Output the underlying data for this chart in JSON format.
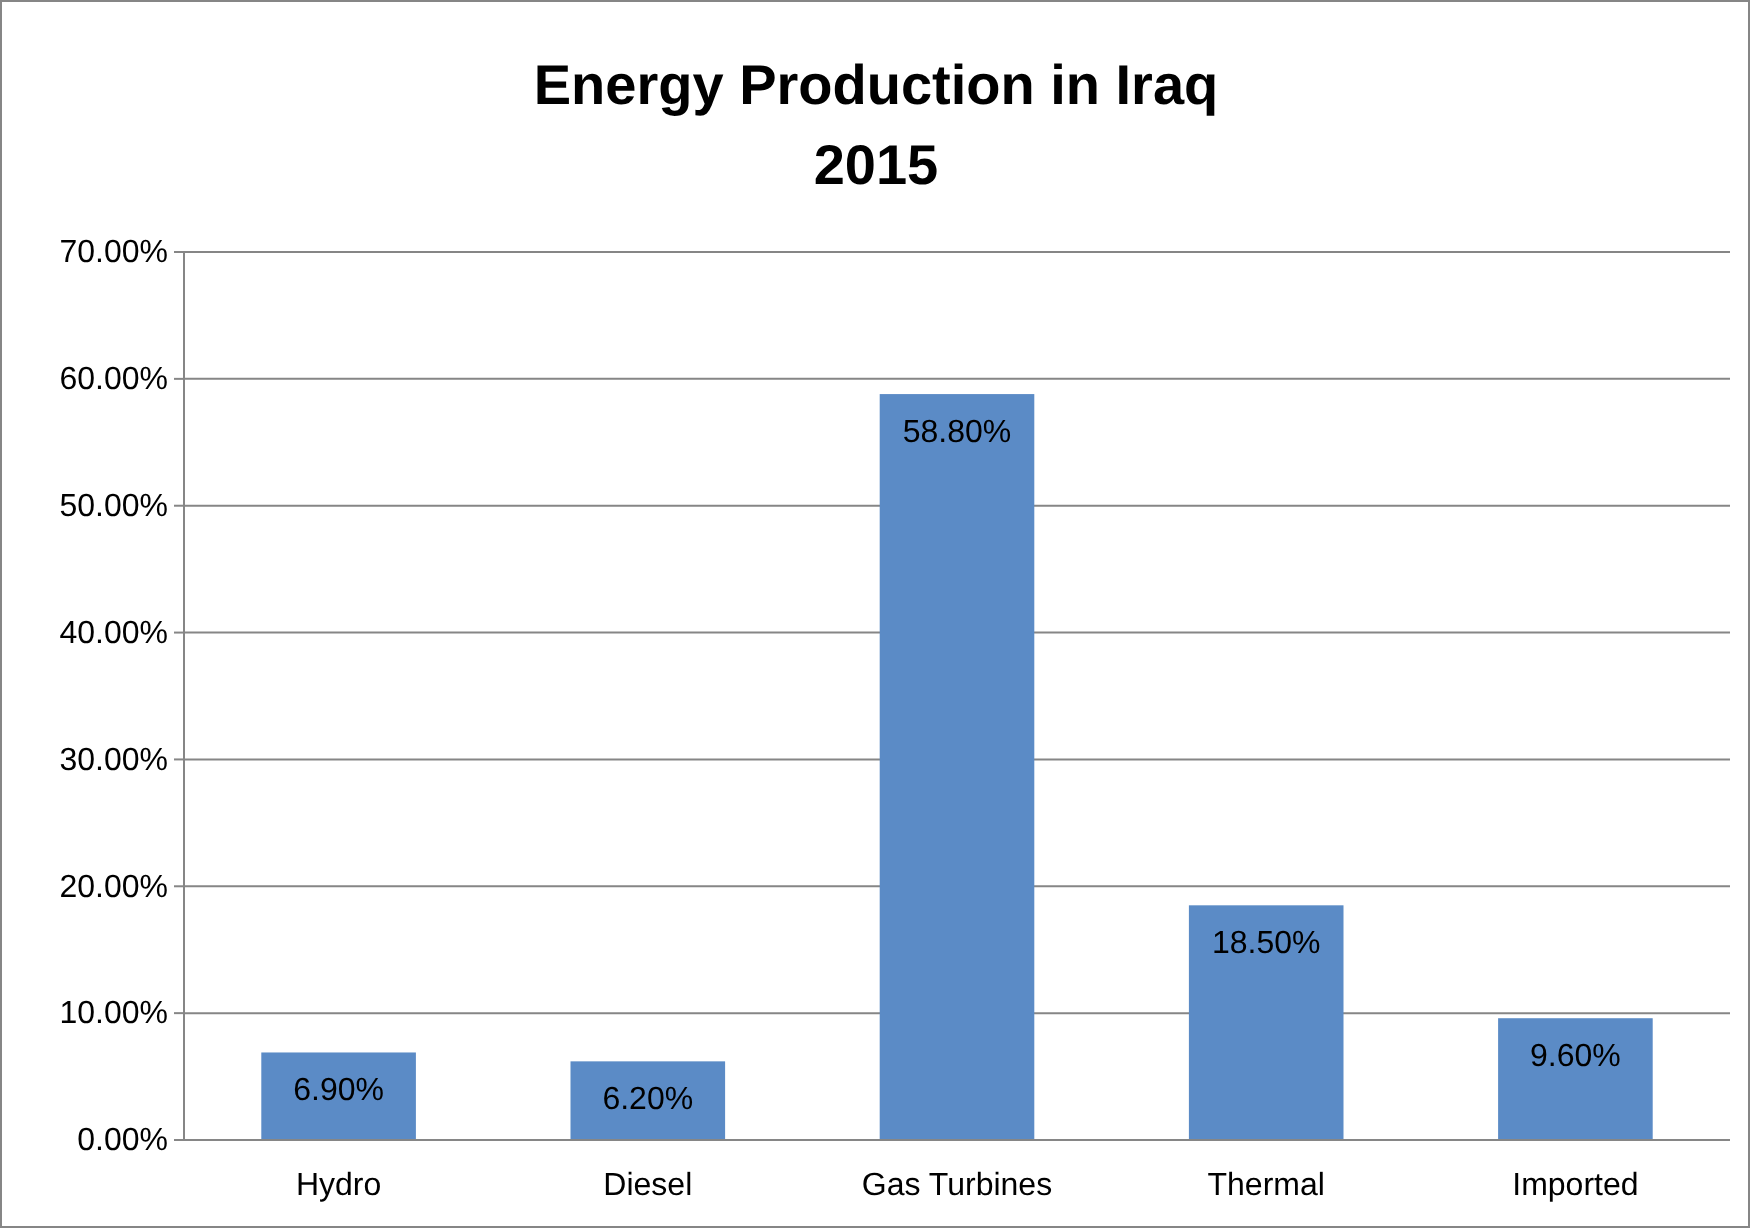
{
  "chart_data": {
    "type": "bar",
    "title": "Energy Production in Iraq",
    "subtitle": "2015",
    "categories": [
      "Hydro",
      "Diesel",
      "Gas Turbines",
      "Thermal",
      "Imported"
    ],
    "values": [
      6.9,
      6.2,
      58.8,
      18.5,
      9.6
    ],
    "value_labels": [
      "6.90%",
      "6.20%",
      "58.80%",
      "18.50%",
      "9.60%"
    ],
    "color": "#5b8bc6",
    "ylim": [
      0,
      70
    ],
    "yticks": [
      {
        "value": 0,
        "label": "0.00%"
      },
      {
        "value": 10,
        "label": "10.00%"
      },
      {
        "value": 20,
        "label": "20.00%"
      },
      {
        "value": 30,
        "label": "30.00%"
      },
      {
        "value": 40,
        "label": "40.00%"
      },
      {
        "value": 50,
        "label": "50.00%"
      },
      {
        "value": 60,
        "label": "60.00%"
      },
      {
        "value": 70,
        "label": "70.00%"
      }
    ],
    "grid": "y"
  }
}
